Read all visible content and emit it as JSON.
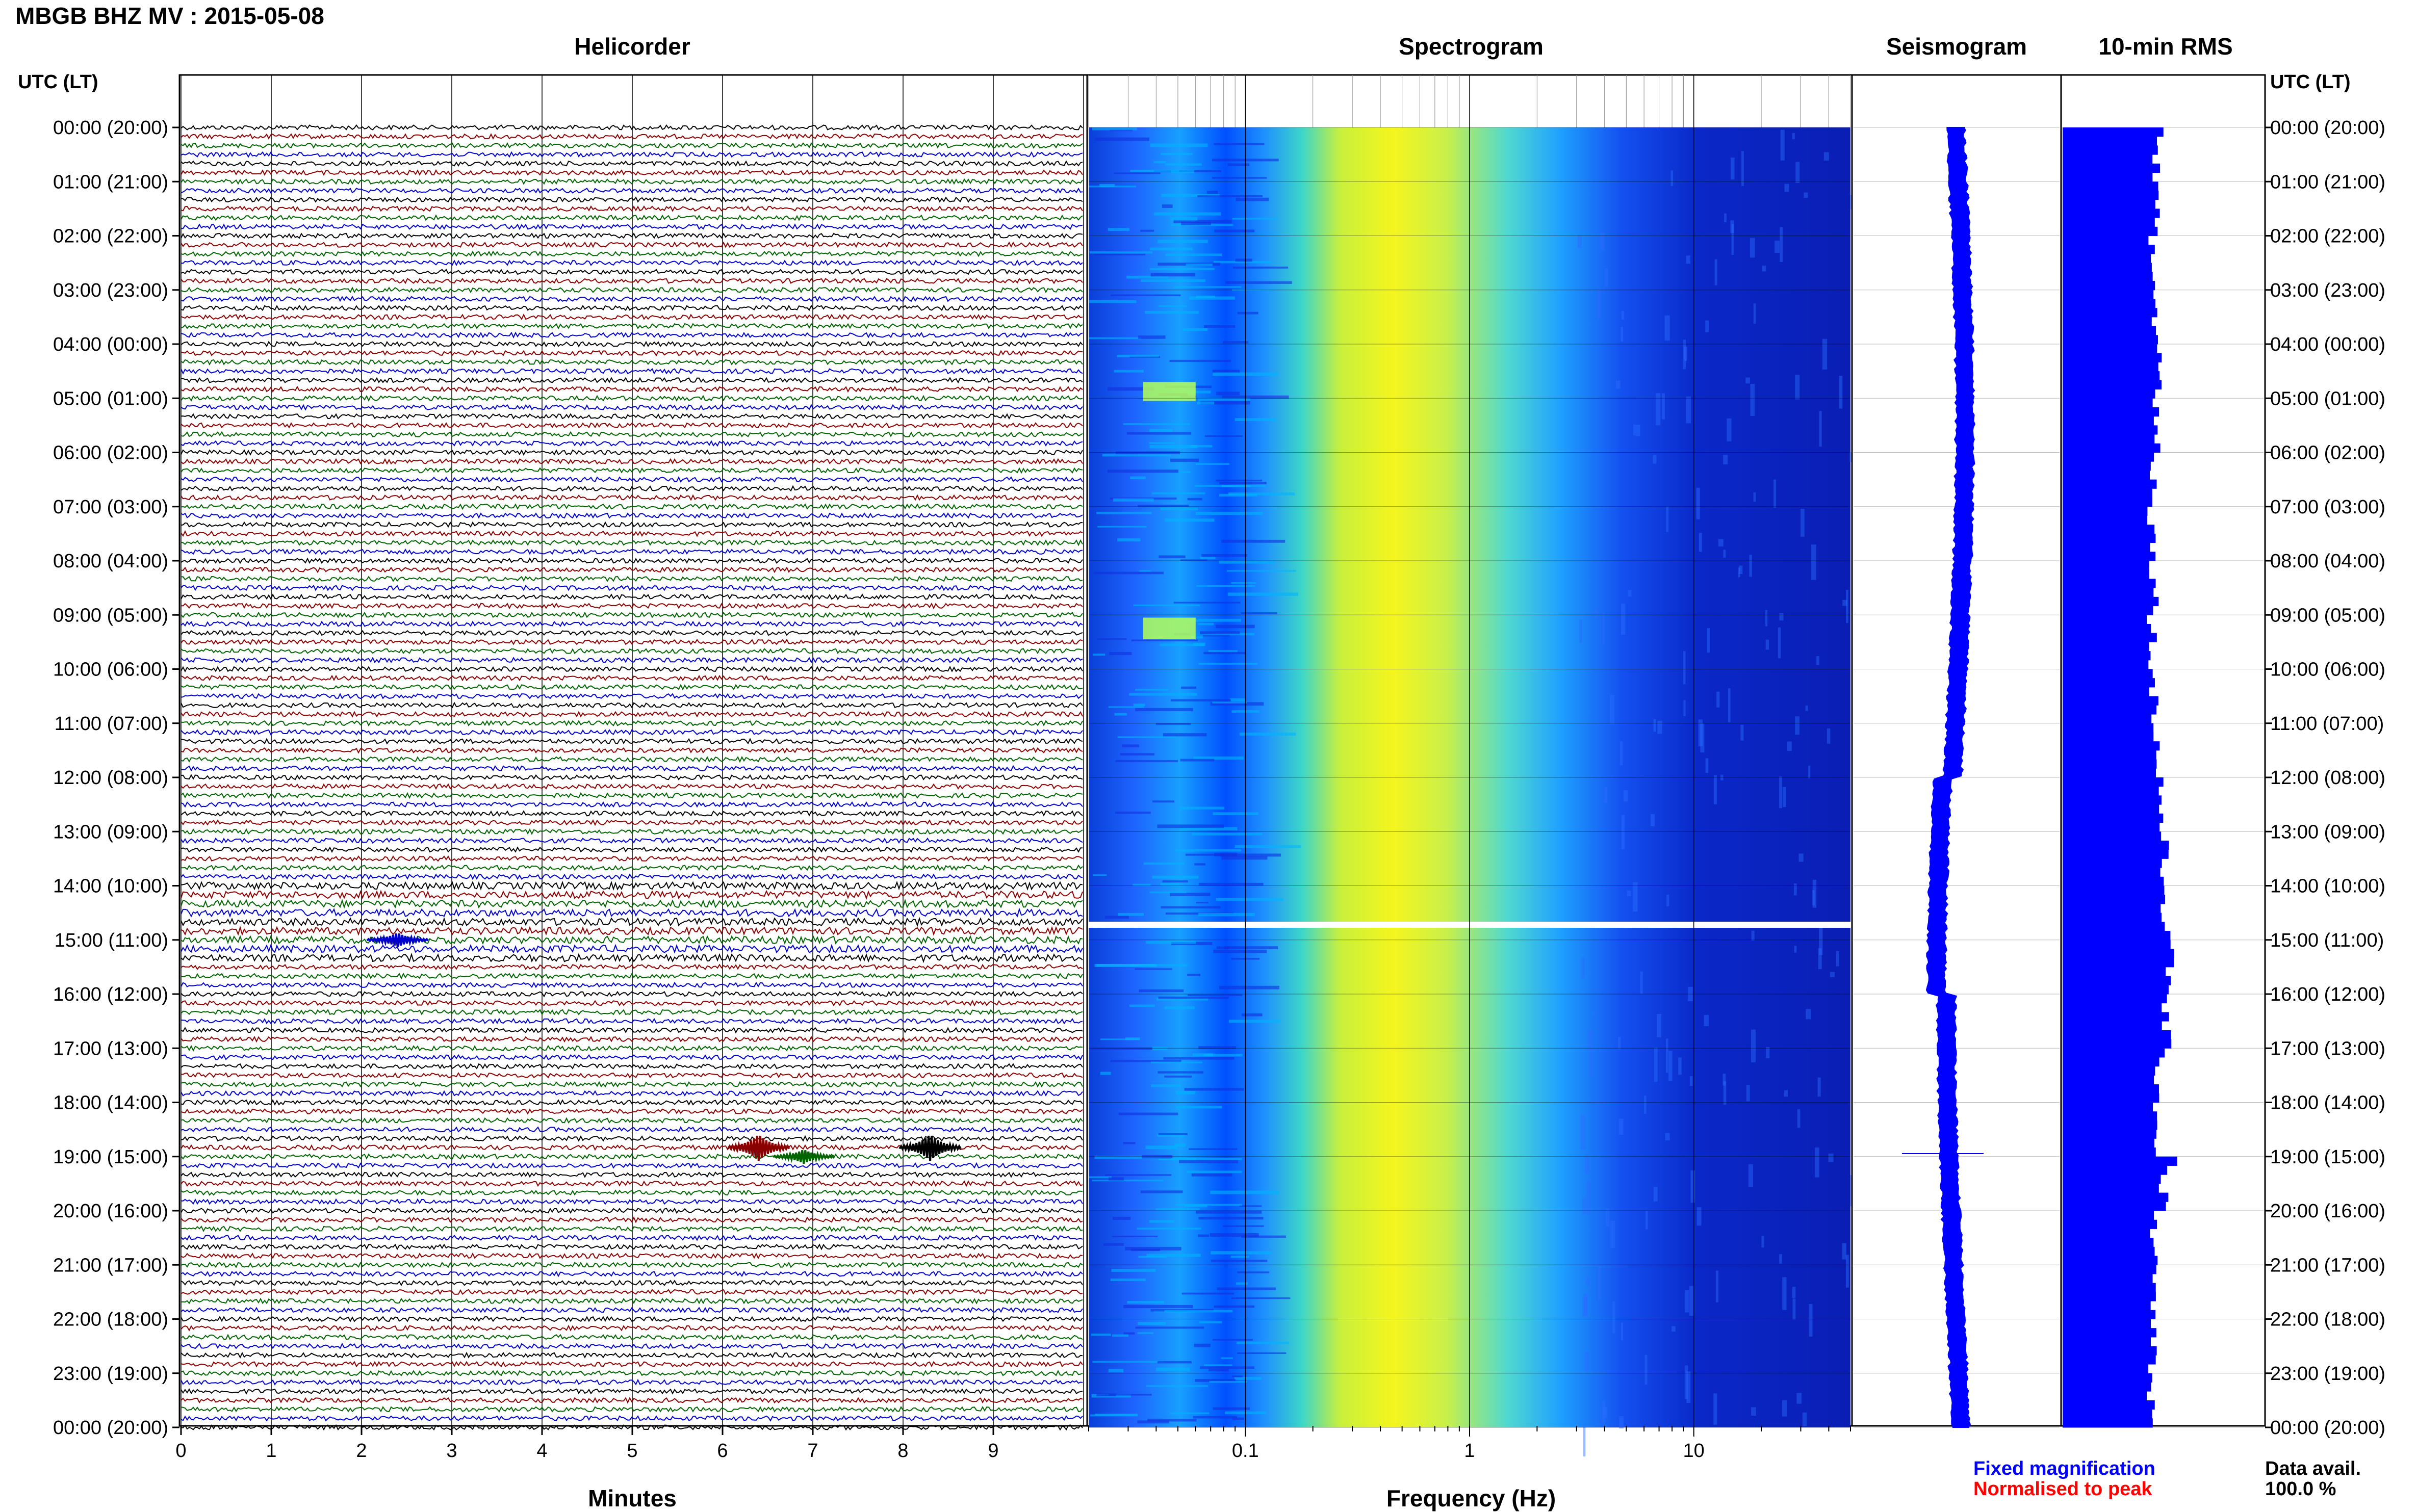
{
  "title": "MBGB BHZ MV : 2015-05-08",
  "panels": {
    "helicorder": "Helicorder",
    "spectrogram": "Spectrogram",
    "seismogram": "Seismogram",
    "rms": "10-min RMS"
  },
  "axis_labels": {
    "utc_left": "UTC (LT)",
    "utc_right": "UTC (LT)",
    "helicorder_x": "Minutes",
    "spectrogram_x": "Frequency (Hz)"
  },
  "legend": {
    "fixed": "Fixed magnification",
    "normalised": "Normalised to peak",
    "fixed_color": "#0000ff",
    "normalised_color": "#ff0000"
  },
  "data_availability": {
    "label": "Data avail.",
    "value": "100.0 %"
  },
  "chart_data": [
    {
      "type": "line",
      "name": "helicorder",
      "x_ticks": [
        "0",
        "1",
        "2",
        "3",
        "4",
        "5",
        "6",
        "7",
        "8",
        "9"
      ],
      "xlabel": "Minutes",
      "xlim": [
        0,
        10
      ],
      "trace_colors": [
        "#000000",
        "#8b0000",
        "#006400",
        "#0000cd"
      ],
      "rows_per_hour": 6,
      "hours": 24,
      "events": [
        {
          "time": "18:50",
          "minute": 6.4,
          "color": "#8b0000",
          "amplitude": "strong"
        },
        {
          "time": "18:50",
          "minute": 8.3,
          "color": "#000000",
          "amplitude": "strong"
        },
        {
          "time": "19:00",
          "minute": 6.9,
          "color": "#006400",
          "amplitude": "moderate"
        },
        {
          "time": "15:00",
          "minute": 2.4,
          "color": "#0000cd",
          "amplitude": "moderate"
        }
      ],
      "gap": {
        "time": "14:50",
        "note": "data gap"
      }
    },
    {
      "type": "heatmap",
      "name": "spectrogram",
      "xlabel": "Frequency (Hz)",
      "x_scale": "log",
      "xlim": [
        0.02,
        50
      ],
      "x_ticks": [
        "0.1",
        "1",
        "10"
      ],
      "colormap": [
        "#00008b",
        "#0000ff",
        "#1e90ff",
        "#00c8ff",
        "#7fffd4",
        "#c8ff32",
        "#ffff00"
      ],
      "dominant_band_hz": [
        0.15,
        0.5
      ],
      "gap_time": "14:50"
    },
    {
      "type": "line",
      "name": "seismogram",
      "trace_color": "#0000ff",
      "events": [
        {
          "time": "19:00",
          "note": "spike"
        }
      ]
    },
    {
      "type": "bar",
      "name": "10-min RMS",
      "bar_color": "#0000ff",
      "relative_values_hourly": [
        0.85,
        0.82,
        0.8,
        0.83,
        0.86,
        0.84,
        0.82,
        0.8,
        0.82,
        0.8,
        0.82,
        0.84,
        0.88,
        0.9,
        0.92,
        0.95,
        0.92,
        0.86,
        0.84,
        0.9,
        0.82,
        0.8,
        0.8,
        0.78
      ],
      "peak_time": "19:00"
    }
  ],
  "y_axis": {
    "labels": [
      "00:00 (20:00)",
      "01:00 (21:00)",
      "02:00 (22:00)",
      "03:00 (23:00)",
      "04:00 (00:00)",
      "05:00 (01:00)",
      "06:00 (02:00)",
      "07:00 (03:00)",
      "08:00 (04:00)",
      "09:00 (05:00)",
      "10:00 (06:00)",
      "11:00 (07:00)",
      "12:00 (08:00)",
      "13:00 (09:00)",
      "14:00 (10:00)",
      "15:00 (11:00)",
      "16:00 (12:00)",
      "17:00 (13:00)",
      "18:00 (14:00)",
      "19:00 (15:00)",
      "20:00 (16:00)",
      "21:00 (17:00)",
      "22:00 (18:00)",
      "23:00 (19:00)",
      "00:00 (20:00)"
    ]
  }
}
